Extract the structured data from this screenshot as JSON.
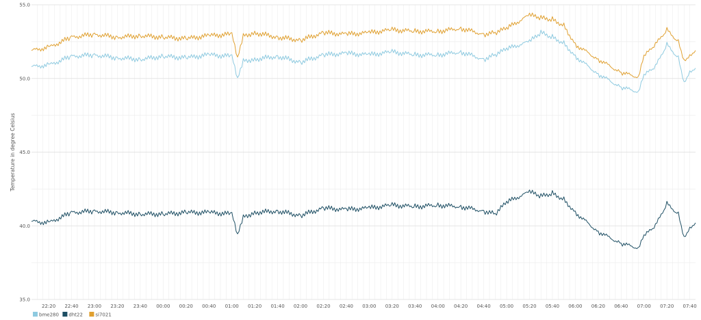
{
  "chart_data": {
    "type": "line",
    "title": "",
    "xlabel": "",
    "ylabel": "Temperature in degree Celsius",
    "ylim": [
      35.0,
      55.0
    ],
    "yticks": [
      "35.0",
      "40.0",
      "45.0",
      "50.0",
      "55.0"
    ],
    "grid": true,
    "legend_position": "bottom-left",
    "x_time_start": "22:05",
    "x_time_end": "07:45",
    "x_tick_labels": [
      "22:20",
      "22:40",
      "23:00",
      "23:20",
      "23:40",
      "00:00",
      "00:20",
      "00:40",
      "01:00",
      "01:20",
      "01:40",
      "02:00",
      "02:20",
      "02:40",
      "03:00",
      "03:20",
      "03:40",
      "04:00",
      "04:20",
      "04:40",
      "05:00",
      "05:20",
      "05:40",
      "06:00",
      "06:20",
      "06:40",
      "07:00",
      "07:20",
      "07:40"
    ],
    "x": [
      "22:05",
      "22:20",
      "22:40",
      "23:00",
      "23:20",
      "23:40",
      "00:00",
      "00:20",
      "00:40",
      "01:00",
      "01:05",
      "01:10",
      "01:20",
      "01:40",
      "02:00",
      "02:20",
      "02:40",
      "03:00",
      "03:20",
      "03:40",
      "04:00",
      "04:20",
      "04:40",
      "04:50",
      "05:00",
      "05:20",
      "05:30",
      "05:40",
      "05:50",
      "06:00",
      "06:20",
      "06:40",
      "06:55",
      "07:00",
      "07:10",
      "07:20",
      "07:30",
      "07:35",
      "07:40",
      "07:45"
    ],
    "series": [
      {
        "name": "bme280",
        "color": "#8ecae0",
        "values": [
          50.8,
          50.9,
          51.5,
          51.6,
          51.4,
          51.3,
          51.5,
          51.4,
          51.6,
          51.5,
          49.9,
          51.2,
          51.3,
          51.5,
          51.1,
          51.6,
          51.7,
          51.6,
          51.8,
          51.6,
          51.6,
          51.8,
          51.3,
          51.6,
          52.0,
          52.5,
          53.1,
          52.8,
          52.4,
          51.5,
          50.3,
          49.4,
          49.1,
          50.2,
          50.8,
          52.3,
          51.4,
          49.7,
          50.5,
          50.7
        ]
      },
      {
        "name": "dht22",
        "color": "#1d4e63",
        "values": [
          40.3,
          40.2,
          40.9,
          41.0,
          40.9,
          40.8,
          40.8,
          40.9,
          40.9,
          40.8,
          39.3,
          40.6,
          40.9,
          41.0,
          40.7,
          41.2,
          41.1,
          41.2,
          41.4,
          41.3,
          41.4,
          41.3,
          41.0,
          40.8,
          41.6,
          42.3,
          42.0,
          42.2,
          41.8,
          40.9,
          39.6,
          38.8,
          38.5,
          39.3,
          40.0,
          41.5,
          40.8,
          39.2,
          39.9,
          40.2
        ]
      },
      {
        "name": "si7021",
        "color": "#e0a030",
        "values": [
          51.9,
          52.1,
          52.8,
          53.0,
          52.8,
          52.9,
          52.8,
          52.7,
          52.9,
          53.0,
          51.3,
          52.9,
          53.1,
          52.8,
          52.6,
          53.1,
          53.0,
          53.1,
          53.3,
          53.2,
          53.2,
          53.4,
          53.0,
          53.1,
          53.4,
          54.3,
          54.1,
          54.0,
          53.6,
          52.3,
          51.3,
          50.4,
          50.1,
          51.5,
          52.3,
          53.3,
          52.5,
          51.2,
          51.6,
          51.9
        ]
      }
    ]
  }
}
